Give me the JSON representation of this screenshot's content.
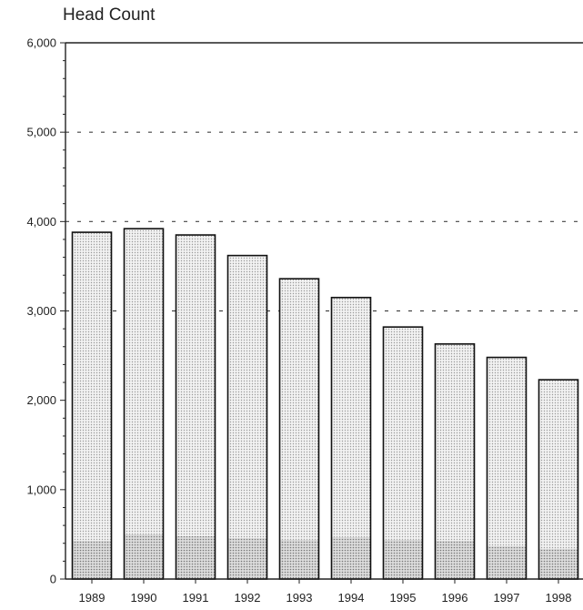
{
  "chart_data": {
    "type": "bar",
    "stacked": true,
    "title": "Head Count",
    "xlabel": "",
    "ylabel": "",
    "ylim": [
      0,
      6000
    ],
    "yticks": [
      0,
      1000,
      2000,
      3000,
      4000,
      5000,
      6000
    ],
    "ytick_labels": [
      "0",
      "1,000",
      "2,000",
      "3,000",
      "4,000",
      "5,000",
      "6,000"
    ],
    "grid": "dashed horizontal at 3,000, 4,000 and 5,000",
    "legend": "none",
    "categories": [
      "1989",
      "1990",
      "1991",
      "1992",
      "1993",
      "1994",
      "1995",
      "1996",
      "1997",
      "1998"
    ],
    "series": [
      {
        "values": [
          430,
          500,
          480,
          460,
          440,
          470,
          440,
          430,
          370,
          340
        ],
        "color": "#c9c9c9"
      },
      {
        "values": [
          3450,
          3420,
          3370,
          3160,
          2920,
          2680,
          2380,
          2200,
          2110,
          1890
        ],
        "color": "#ebebeb"
      }
    ],
    "totals": [
      3880,
      3920,
      3850,
      3620,
      3360,
      3150,
      2820,
      2630,
      2480,
      2230
    ]
  }
}
